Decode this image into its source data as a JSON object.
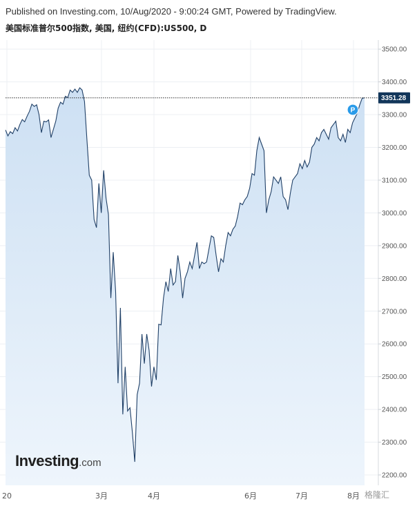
{
  "header": {
    "published": "Published on Investing.com, 10/Aug/2020 - 9:00:24 GMT, Powered by TradingView.",
    "instrument": "美国标准普尔500指数, 美国, 纽约(CFD):US500, D"
  },
  "watermark": {
    "brand": "Investing",
    "suffix": ".com"
  },
  "corner_badge": "格隆汇",
  "chart_data": {
    "type": "area",
    "title": "",
    "xlabel": "",
    "ylabel": "",
    "ylim": [
      2180,
      3530
    ],
    "y_ticks": [
      "2200.00",
      "2300.00",
      "2400.00",
      "2500.00",
      "2600.00",
      "2700.00",
      "2800.00",
      "2900.00",
      "3000.00",
      "3100.00",
      "3200.00",
      "3300.00",
      "3400.00",
      "3500.00"
    ],
    "x_ticks": [
      "20",
      "3月",
      "4月",
      "6月",
      "7月",
      "8月"
    ],
    "last_price_label": "3351.28",
    "marker_label": "P",
    "colors": {
      "line": "#1f3f66",
      "fill_top": "#cde0f3",
      "fill_bottom": "#eef5fc",
      "grid": "#eceff3",
      "price_tag": "#12365a",
      "marker": "#2a9be9",
      "axis_text": "#555555"
    },
    "series": [
      {
        "values": [
          3253,
          3235,
          3248,
          3242,
          3260,
          3250,
          3270,
          3285,
          3278,
          3295,
          3310,
          3332,
          3325,
          3330,
          3300,
          3245,
          3280,
          3278,
          3284,
          3230,
          3255,
          3280,
          3320,
          3338,
          3332,
          3356,
          3352,
          3375,
          3368,
          3378,
          3368,
          3382,
          3375,
          3340,
          3225,
          3115,
          3100,
          2980,
          2955,
          3090,
          3000,
          3130,
          3045,
          2995,
          2740,
          2880,
          2760,
          2480,
          2710,
          2385,
          2530,
          2395,
          2405,
          2330,
          2240,
          2445,
          2480,
          2630,
          2540,
          2630,
          2580,
          2470,
          2530,
          2490,
          2660,
          2658,
          2740,
          2790,
          2760,
          2830,
          2780,
          2790,
          2870,
          2820,
          2740,
          2800,
          2820,
          2850,
          2830,
          2870,
          2910,
          2830,
          2850,
          2845,
          2850,
          2890,
          2930,
          2925,
          2870,
          2820,
          2860,
          2850,
          2900,
          2940,
          2930,
          2950,
          2960,
          2990,
          3030,
          3025,
          3040,
          3050,
          3075,
          3120,
          3115,
          3190,
          3230,
          3210,
          3190,
          3000,
          3040,
          3065,
          3110,
          3100,
          3090,
          3110,
          3050,
          3040,
          3010,
          3060,
          3100,
          3110,
          3120,
          3150,
          3135,
          3160,
          3140,
          3155,
          3200,
          3210,
          3230,
          3220,
          3245,
          3255,
          3240,
          3225,
          3260,
          3270,
          3280,
          3230,
          3220,
          3240,
          3215,
          3255,
          3245,
          3275,
          3290,
          3305,
          3330,
          3350,
          3351.28
        ]
      }
    ]
  }
}
